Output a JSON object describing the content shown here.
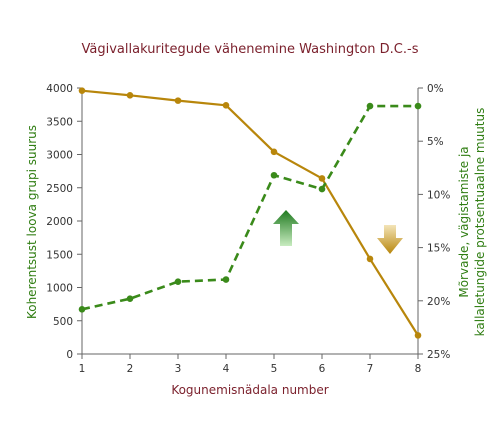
{
  "chart_data": {
    "type": "line",
    "title": "Vägivallakuritegude vähenemine Washington D.C.-s",
    "xlabel": "Kogunemisnädala number",
    "ylabel_left": "Koherentsust loova grupi suurus",
    "ylabel_right": [
      "Mõrvade, vägistamiste ja",
      "kallaletungide protsentuaalne muutus"
    ],
    "x": [
      1,
      2,
      3,
      4,
      5,
      6,
      7,
      8
    ],
    "x_tick_labels": [
      "1",
      "2",
      "3",
      "4",
      "5",
      "6",
      "7",
      "8"
    ],
    "ylim_left": [
      0,
      4000
    ],
    "yticks_left": [
      "0",
      "500",
      "1000",
      "1500",
      "2000",
      "2500",
      "3000",
      "3500",
      "4000"
    ],
    "ylim_right": [
      0,
      25
    ],
    "right_axis_inverted": true,
    "yticks_right": [
      "0%",
      "5%",
      "10%",
      "15%",
      "20%",
      "25%"
    ],
    "grid": false,
    "series": [
      {
        "axis": "left",
        "color": "#b8860b",
        "style": "solid",
        "values": [
          3960,
          3890,
          3810,
          3740,
          3040,
          2640,
          1430,
          280
        ]
      },
      {
        "axis": "right",
        "color": "#3a8a1a",
        "style": "dashed",
        "values": [
          20.8,
          19.8,
          18.2,
          18.0,
          8.2,
          9.5,
          1.7,
          1.7
        ]
      }
    ],
    "annotations": [
      {
        "type": "arrow-up",
        "color": "#3a8a1a"
      },
      {
        "type": "arrow-down",
        "color": "#b8860b"
      }
    ]
  }
}
